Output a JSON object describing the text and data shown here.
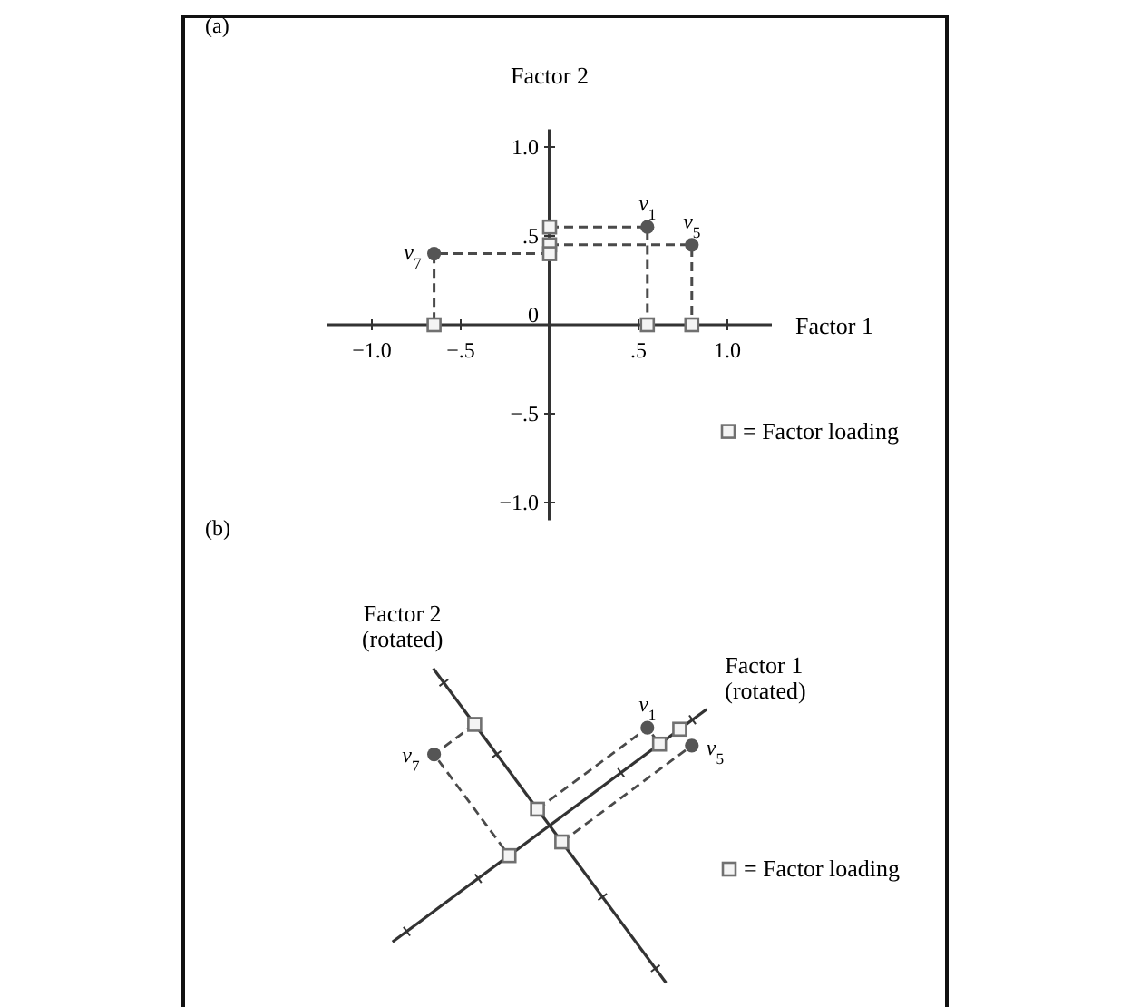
{
  "chart_data": [
    {
      "type": "scatter",
      "title": "(a)",
      "xlabel": "Factor 1",
      "ylabel": "Factor 2",
      "xlim": [
        -1.25,
        1.25
      ],
      "ylim": [
        -1.1,
        1.1
      ],
      "xticks": [
        {
          "value": -1,
          "label": "−1.0"
        },
        {
          "value": -0.5,
          "label": "−.5"
        },
        {
          "value": 0.5,
          "label": ".5"
        },
        {
          "value": 1,
          "label": "1.0"
        }
      ],
      "yticks": [
        {
          "value": -1,
          "label": "−1.0"
        },
        {
          "value": -0.5,
          "label": "−.5"
        },
        {
          "value": 0,
          "label": "0"
        },
        {
          "value": 0.5,
          "label": ".5"
        },
        {
          "value": 1,
          "label": "1.0"
        }
      ],
      "marker": "circle",
      "legend": "bottom right",
      "series": [
        {
          "type": "line",
          "color": "#4a4a4a",
          "line_style": "dashed",
          "marker": "none",
          "x": [
            0,
            0.55,
            0.55
          ],
          "values": [
            0.55,
            0.55,
            0
          ]
        },
        {
          "type": "line",
          "color": "#4a4a4a",
          "line_style": "dashed",
          "marker": "none",
          "x": [
            0,
            0.8,
            0.8
          ],
          "values": [
            0.45,
            0.45,
            0
          ]
        },
        {
          "type": "line",
          "color": "#4a4a4a",
          "line_style": "dashed",
          "marker": "none",
          "x": [
            0,
            -0.65,
            -0.65
          ],
          "values": [
            0.4,
            0.4,
            0
          ]
        },
        {
          "name": "= Factor loading",
          "color": "#707070",
          "marker": "square",
          "x": [
            0.55,
            0.8,
            -0.65,
            0,
            0,
            0
          ],
          "values": [
            0,
            0,
            0,
            0.55,
            0.45,
            0.4
          ]
        },
        {
          "name": "v$_{1}$",
          "color": "#555555",
          "x": [
            0.55
          ],
          "values": [
            0.55
          ]
        },
        {
          "name": "v$_{5}$",
          "color": "#555555",
          "x": [
            0.8
          ],
          "values": [
            0.45
          ]
        },
        {
          "name": "v$_{7}$",
          "color": "#555555",
          "x": [
            -0.65
          ],
          "values": [
            0.4
          ]
        }
      ]
    },
    {
      "type": "other",
      "title": "(b)",
      "xlabel": "Factor 1\n(rotated)",
      "ylabel": "Factor 2\n(rotated)",
      "annotations": [
        "v$_{1}$",
        "v$_{5}$",
        "v$_{7}$",
        "= Factor loading"
      ]
    }
  ]
}
